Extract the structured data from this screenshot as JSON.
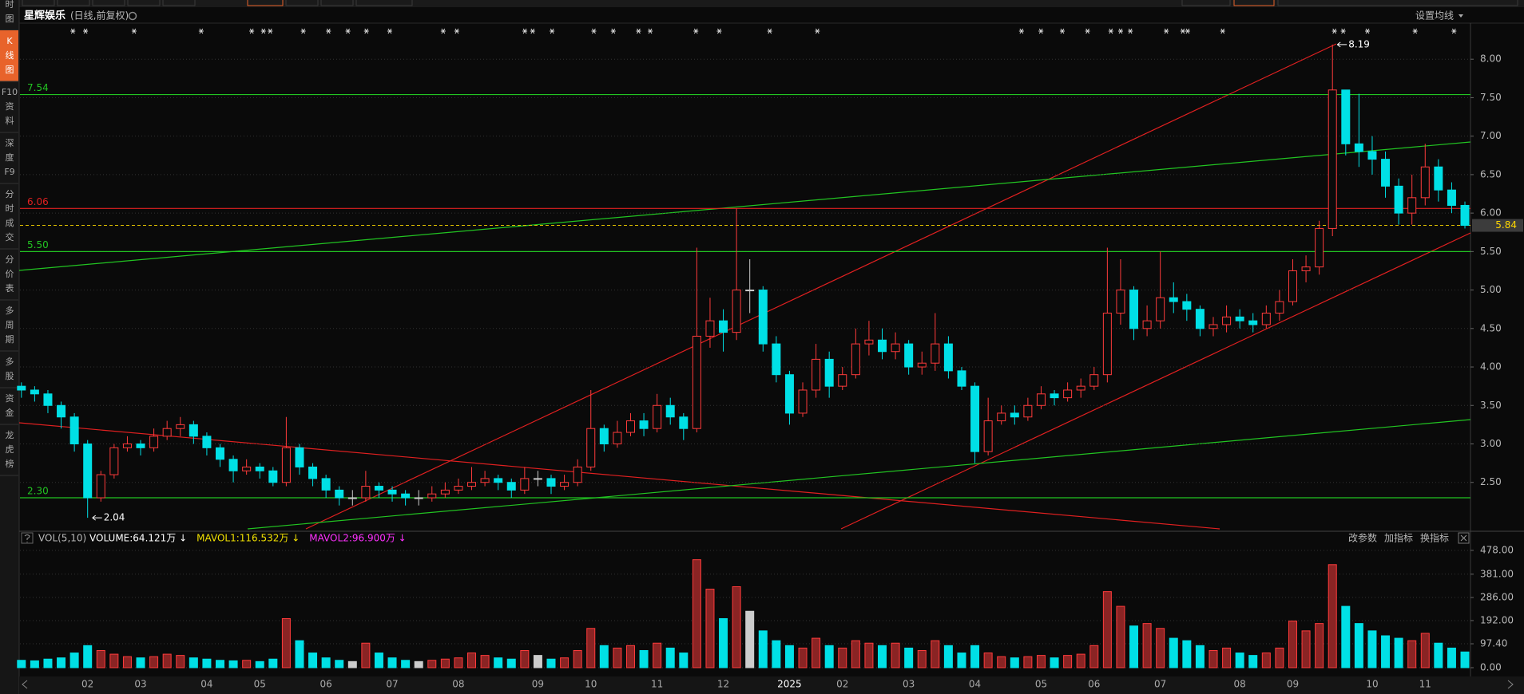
{
  "header": {
    "settings": "设置均线"
  },
  "sidebar": {
    "active": 1,
    "tabs": [
      [
        "时",
        "图"
      ],
      [
        "K",
        "线",
        "图"
      ],
      [
        "F10",
        "资",
        "料"
      ],
      [
        "深",
        "度",
        "F9"
      ],
      [
        "分",
        "时",
        "成",
        "交"
      ],
      [
        "分",
        "价",
        "表"
      ],
      [
        "多",
        "周",
        "期"
      ],
      [
        "多",
        "股"
      ],
      [
        "资",
        "金"
      ],
      [
        "龙",
        "虎",
        "榜"
      ]
    ]
  },
  "chart_data": {
    "type": "candlestick",
    "title": "星辉娱乐",
    "subtitle": "(日线,前复权)",
    "categories": [
      null,
      null,
      null,
      null,
      null,
      "02",
      null,
      null,
      null,
      "03",
      null,
      null,
      null,
      null,
      "04",
      null,
      null,
      null,
      "05",
      null,
      null,
      null,
      null,
      "06",
      null,
      null,
      null,
      null,
      "07",
      null,
      null,
      null,
      null,
      "08",
      null,
      null,
      null,
      null,
      null,
      "09",
      null,
      null,
      null,
      "10",
      null,
      null,
      null,
      null,
      "11",
      null,
      null,
      null,
      null,
      "12",
      null,
      null,
      null,
      null,
      "2025",
      null,
      null,
      null,
      "02",
      null,
      null,
      null,
      null,
      "03",
      null,
      null,
      null,
      null,
      "04",
      null,
      null,
      null,
      null,
      "05",
      null,
      null,
      null,
      "06",
      null,
      null,
      null,
      null,
      "07",
      null,
      null,
      null,
      null,
      null,
      "08",
      null,
      null,
      null,
      "09",
      null,
      null,
      null,
      null,
      null,
      "10",
      null,
      null,
      null,
      "11",
      null,
      null,
      null
    ],
    "open": [
      3.75,
      3.7,
      3.65,
      3.5,
      3.35,
      3.0,
      2.3,
      2.6,
      2.95,
      3.0,
      2.95,
      3.1,
      3.2,
      3.25,
      3.1,
      2.95,
      2.8,
      2.65,
      2.7,
      2.65,
      2.5,
      2.95,
      2.7,
      2.55,
      2.4,
      2.3,
      2.3,
      2.45,
      2.4,
      2.35,
      2.3,
      2.3,
      2.35,
      2.4,
      2.45,
      2.5,
      2.55,
      2.5,
      2.4,
      2.55,
      2.55,
      2.45,
      2.5,
      2.7,
      3.2,
      3.0,
      3.15,
      3.3,
      3.2,
      3.5,
      3.35,
      3.2,
      4.4,
      4.6,
      4.45,
      5.0,
      5.0,
      4.3,
      3.9,
      3.4,
      3.7,
      4.1,
      3.75,
      3.9,
      4.3,
      4.35,
      4.2,
      4.3,
      4.0,
      4.05,
      4.3,
      3.95,
      3.75,
      2.9,
      3.3,
      3.4,
      3.35,
      3.5,
      3.65,
      3.6,
      3.7,
      3.75,
      3.9,
      4.7,
      5.0,
      4.5,
      4.6,
      4.9,
      4.85,
      4.75,
      4.5,
      4.55,
      4.65,
      4.6,
      4.55,
      4.7,
      4.85,
      5.25,
      5.3,
      5.8,
      7.6,
      6.9,
      6.8,
      6.7,
      6.35,
      6.0,
      6.2,
      6.6,
      6.3,
      6.1
    ],
    "high": [
      3.8,
      3.75,
      3.7,
      3.55,
      3.4,
      3.05,
      2.65,
      3.0,
      3.1,
      3.05,
      3.2,
      3.3,
      3.35,
      3.3,
      3.15,
      3.0,
      2.85,
      2.8,
      2.75,
      2.7,
      3.35,
      3.0,
      2.75,
      2.6,
      2.45,
      2.4,
      2.65,
      2.5,
      2.45,
      2.4,
      2.4,
      2.45,
      2.5,
      2.55,
      2.7,
      2.65,
      2.6,
      2.55,
      2.7,
      2.65,
      2.6,
      2.6,
      2.8,
      3.7,
      3.25,
      3.3,
      3.4,
      3.4,
      3.65,
      3.6,
      3.4,
      5.55,
      4.9,
      4.75,
      6.06,
      5.4,
      5.05,
      4.4,
      3.95,
      3.8,
      4.3,
      4.2,
      4.0,
      4.5,
      4.6,
      4.5,
      4.45,
      4.35,
      4.2,
      4.7,
      4.4,
      4.0,
      3.8,
      3.6,
      3.5,
      3.5,
      3.6,
      3.75,
      3.7,
      3.8,
      3.85,
      4.0,
      5.55,
      5.4,
      5.05,
      4.8,
      5.5,
      5.1,
      4.95,
      4.8,
      4.65,
      4.8,
      4.75,
      4.7,
      4.8,
      5.0,
      5.4,
      5.45,
      5.9,
      8.19,
      7.6,
      7.55,
      7.0,
      6.8,
      6.45,
      6.5,
      6.9,
      6.7,
      6.4,
      6.15
    ],
    "low": [
      3.6,
      3.55,
      3.4,
      3.2,
      2.9,
      2.04,
      2.25,
      2.55,
      2.9,
      2.85,
      2.9,
      3.05,
      3.1,
      3.0,
      2.85,
      2.7,
      2.5,
      2.6,
      2.55,
      2.45,
      2.45,
      2.6,
      2.45,
      2.3,
      2.2,
      2.2,
      2.25,
      2.3,
      2.25,
      2.2,
      2.2,
      2.25,
      2.3,
      2.35,
      2.4,
      2.45,
      2.4,
      2.3,
      2.35,
      2.45,
      2.35,
      2.4,
      2.45,
      2.65,
      2.9,
      2.95,
      3.1,
      3.1,
      3.15,
      3.25,
      3.05,
      3.15,
      4.25,
      4.2,
      4.35,
      4.7,
      4.2,
      3.8,
      3.25,
      3.35,
      3.6,
      3.6,
      3.7,
      3.85,
      4.15,
      4.1,
      4.1,
      3.9,
      3.9,
      3.95,
      3.85,
      3.7,
      2.75,
      2.85,
      3.25,
      3.25,
      3.3,
      3.45,
      3.5,
      3.55,
      3.6,
      3.7,
      3.8,
      4.55,
      4.35,
      4.4,
      4.5,
      4.7,
      4.6,
      4.4,
      4.4,
      4.45,
      4.5,
      4.45,
      4.5,
      4.6,
      4.8,
      5.1,
      5.2,
      5.7,
      6.75,
      6.6,
      6.5,
      6.2,
      5.85,
      5.85,
      6.1,
      6.15,
      6.0,
      5.8
    ],
    "close": [
      3.7,
      3.65,
      3.5,
      3.35,
      3.0,
      2.3,
      2.6,
      2.95,
      3.0,
      2.95,
      3.1,
      3.2,
      3.25,
      3.1,
      2.95,
      2.8,
      2.65,
      2.7,
      2.65,
      2.5,
      2.95,
      2.7,
      2.55,
      2.4,
      2.3,
      2.3,
      2.45,
      2.4,
      2.35,
      2.3,
      2.3,
      2.35,
      2.4,
      2.45,
      2.5,
      2.55,
      2.5,
      2.4,
      2.55,
      2.55,
      2.45,
      2.5,
      2.7,
      3.2,
      3.0,
      3.15,
      3.3,
      3.2,
      3.5,
      3.35,
      3.2,
      4.4,
      4.6,
      4.45,
      5.0,
      5.0,
      4.3,
      3.9,
      3.4,
      3.7,
      4.1,
      3.75,
      3.9,
      4.3,
      4.35,
      4.2,
      4.3,
      4.0,
      4.05,
      4.3,
      3.95,
      3.75,
      2.9,
      3.3,
      3.4,
      3.35,
      3.5,
      3.65,
      3.6,
      3.7,
      3.75,
      3.9,
      4.7,
      5.0,
      4.5,
      4.6,
      4.9,
      4.85,
      4.75,
      4.5,
      4.55,
      4.65,
      4.6,
      4.55,
      4.7,
      4.85,
      5.25,
      5.3,
      5.8,
      7.6,
      6.9,
      6.8,
      6.7,
      6.35,
      6.0,
      6.2,
      6.6,
      6.3,
      6.1,
      5.84
    ],
    "volume": [
      30,
      28,
      35,
      40,
      60,
      90,
      70,
      55,
      45,
      40,
      45,
      55,
      50,
      40,
      35,
      30,
      28,
      30,
      25,
      35,
      200,
      110,
      60,
      40,
      30,
      25,
      100,
      60,
      40,
      30,
      25,
      30,
      35,
      40,
      60,
      50,
      40,
      35,
      70,
      50,
      35,
      40,
      70,
      160,
      90,
      80,
      90,
      70,
      100,
      80,
      60,
      440,
      320,
      200,
      330,
      230,
      150,
      110,
      90,
      80,
      120,
      90,
      80,
      110,
      100,
      90,
      100,
      80,
      70,
      110,
      90,
      60,
      90,
      60,
      45,
      40,
      45,
      50,
      40,
      50,
      55,
      90,
      310,
      250,
      170,
      180,
      160,
      120,
      110,
      90,
      70,
      80,
      60,
      50,
      60,
      80,
      190,
      150,
      180,
      420,
      250,
      180,
      150,
      130,
      120,
      110,
      140,
      100,
      80,
      64.121
    ],
    "up_color": "#ff3b3b",
    "down_color": "#00e0e6",
    "grid": true,
    "ylim": [
      1.9,
      8.45
    ],
    "yticks": [
      {
        "value": 2.5,
        "label": "2.50"
      },
      {
        "value": 3,
        "label": "3.00"
      },
      {
        "value": 3.5,
        "label": "3.50"
      },
      {
        "value": 4,
        "label": "4.00"
      },
      {
        "value": 4.5,
        "label": "4.50"
      },
      {
        "value": 5,
        "label": "5.00"
      },
      {
        "value": 5.5,
        "label": "5.50"
      },
      {
        "value": 6,
        "label": "6.00"
      },
      {
        "value": 6.5,
        "label": "6.50"
      },
      {
        "value": 7,
        "label": "7.00"
      },
      {
        "value": 7.5,
        "label": "7.50"
      },
      {
        "value": 8,
        "label": "8.00"
      }
    ],
    "last_price": 5.84,
    "max_label": 8.19,
    "min_label": 2.04,
    "hlines": [
      {
        "value": 7.54,
        "color": "#22c422"
      },
      {
        "value": 6.06,
        "color": "#e02020"
      },
      {
        "value": 5.5,
        "label": "5.50",
        "color": "#22c422"
      },
      {
        "value": 2.3,
        "label": "2.30",
        "color": "#22c422"
      }
    ],
    "volume_panel": {
      "indicator": "VOL(5,10)",
      "ylim": [
        0,
        500
      ],
      "yticks": [
        {
          "value": 0,
          "label": "0.00"
        },
        {
          "value": 97.4,
          "label": "97.40"
        },
        {
          "value": 192,
          "label": "192.00"
        },
        {
          "value": 286,
          "label": "286.00"
        },
        {
          "value": 381,
          "label": "381.00"
        },
        {
          "value": 478,
          "label": "478.00"
        }
      ],
      "texts": [
        {
          "text": "VOLUME:64.121万 ↓",
          "color": "#ffffff"
        },
        {
          "text": "MAVOL1:116.532万 ↓",
          "color": "#f0e000"
        },
        {
          "text": "MAVOL2:96.900万 ↓",
          "color": "#ff30ff"
        }
      ],
      "buttons": [
        "改参数",
        "加指标",
        "换指标"
      ]
    }
  }
}
